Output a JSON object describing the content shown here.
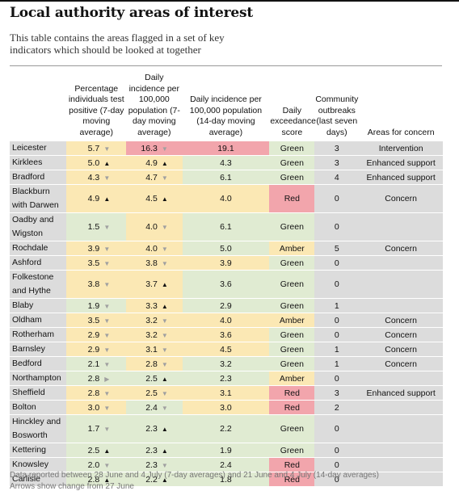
{
  "title": "Local authority areas of interest",
  "intro": "This table contains the areas flagged in a set of key indicators which should be looked at together",
  "headers": {
    "pct": "Percentage individuals test positive (7-day moving average)",
    "inc7": "Daily incidence per 100,000 population (7-day moving average)",
    "inc14": "Daily incidence per 100,000 population (14-day moving average)",
    "exc": "Daily exceedance score",
    "out": "Community outbreaks (last seven days)",
    "area": "Areas for concern"
  },
  "arrow_glyphs": {
    "up": "▲",
    "down": "▼",
    "right": "▶"
  },
  "colors": {
    "grey": "#dcdcdc",
    "yellow": "#fbe8b4",
    "red": "#f2a5ac",
    "green": "#e0ebd2"
  },
  "rows": [
    {
      "name": "Leicester",
      "pct": "5.7",
      "pct_arrow": "down",
      "pct_bg": "y",
      "inc7": "16.3",
      "inc7_arrow": "down",
      "inc7_bg": "r",
      "inc14": "19.1",
      "inc14_bg": "r",
      "exc": "Green",
      "exc_bg": "g",
      "out": "3",
      "area": "Intervention"
    },
    {
      "name": "Kirklees",
      "pct": "5.0",
      "pct_arrow": "up",
      "pct_bg": "y",
      "inc7": "4.9",
      "inc7_arrow": "up",
      "inc7_bg": "y",
      "inc14": "4.3",
      "inc14_bg": "g",
      "exc": "Green",
      "exc_bg": "g",
      "out": "3",
      "area": "Enhanced support"
    },
    {
      "name": "Bradford",
      "pct": "4.3",
      "pct_arrow": "down",
      "pct_bg": "y",
      "inc7": "4.7",
      "inc7_arrow": "down",
      "inc7_bg": "y",
      "inc14": "6.1",
      "inc14_bg": "g",
      "exc": "Green",
      "exc_bg": "g",
      "out": "4",
      "area": "Enhanced support"
    },
    {
      "name": "Blackburn with Darwen",
      "tall": true,
      "pct": "4.9",
      "pct_arrow": "up",
      "pct_bg": "y",
      "inc7": "4.5",
      "inc7_arrow": "up",
      "inc7_bg": "y",
      "inc14": "4.0",
      "inc14_bg": "y",
      "exc": "Red",
      "exc_bg": "r",
      "out": "0",
      "area": "Concern"
    },
    {
      "name": "Oadby and Wigston",
      "tall": true,
      "pct": "1.5",
      "pct_arrow": "down",
      "pct_bg": "g",
      "inc7": "4.0",
      "inc7_arrow": "down",
      "inc7_bg": "y",
      "inc14": "6.1",
      "inc14_bg": "g",
      "exc": "Green",
      "exc_bg": "g",
      "out": "0",
      "area": ""
    },
    {
      "name": "Rochdale",
      "pct": "3.9",
      "pct_arrow": "down",
      "pct_bg": "y",
      "inc7": "4.0",
      "inc7_arrow": "down",
      "inc7_bg": "y",
      "inc14": "5.0",
      "inc14_bg": "g",
      "exc": "Amber",
      "exc_bg": "y",
      "out": "5",
      "area": "Concern"
    },
    {
      "name": "Ashford",
      "pct": "3.5",
      "pct_arrow": "down",
      "pct_bg": "y",
      "inc7": "3.8",
      "inc7_arrow": "down",
      "inc7_bg": "y",
      "inc14": "3.9",
      "inc14_bg": "y",
      "exc": "Green",
      "exc_bg": "g",
      "out": "0",
      "area": ""
    },
    {
      "name": "Folkestone and Hythe",
      "tall": true,
      "pct": "3.8",
      "pct_arrow": "down",
      "pct_bg": "y",
      "inc7": "3.7",
      "inc7_arrow": "up",
      "inc7_bg": "y",
      "inc14": "3.6",
      "inc14_bg": "g",
      "exc": "Green",
      "exc_bg": "g",
      "out": "0",
      "area": ""
    },
    {
      "name": "Blaby",
      "pct": "1.9",
      "pct_arrow": "down",
      "pct_bg": "g",
      "inc7": "3.3",
      "inc7_arrow": "up",
      "inc7_bg": "y",
      "inc14": "2.9",
      "inc14_bg": "g",
      "exc": "Green",
      "exc_bg": "g",
      "out": "1",
      "area": ""
    },
    {
      "name": "Oldham",
      "pct": "3.5",
      "pct_arrow": "down",
      "pct_bg": "y",
      "inc7": "3.2",
      "inc7_arrow": "down",
      "inc7_bg": "y",
      "inc14": "4.0",
      "inc14_bg": "y",
      "exc": "Amber",
      "exc_bg": "y",
      "out": "0",
      "area": "Concern"
    },
    {
      "name": "Rotherham",
      "pct": "2.9",
      "pct_arrow": "down",
      "pct_bg": "y",
      "inc7": "3.2",
      "inc7_arrow": "down",
      "inc7_bg": "y",
      "inc14": "3.6",
      "inc14_bg": "y",
      "exc": "Green",
      "exc_bg": "g",
      "out": "0",
      "area": "Concern"
    },
    {
      "name": "Barnsley",
      "pct": "2.9",
      "pct_arrow": "down",
      "pct_bg": "y",
      "inc7": "3.1",
      "inc7_arrow": "down",
      "inc7_bg": "y",
      "inc14": "4.5",
      "inc14_bg": "y",
      "exc": "Green",
      "exc_bg": "g",
      "out": "1",
      "area": "Concern"
    },
    {
      "name": "Bedford",
      "pct": "2.1",
      "pct_arrow": "down",
      "pct_bg": "g",
      "inc7": "2.8",
      "inc7_arrow": "down",
      "inc7_bg": "y",
      "inc14": "3.2",
      "inc14_bg": "g",
      "exc": "Green",
      "exc_bg": "g",
      "out": "1",
      "area": "Concern"
    },
    {
      "name": "Northampton",
      "pct": "2.8",
      "pct_arrow": "right",
      "pct_bg": "g",
      "inc7": "2.5",
      "inc7_arrow": "up",
      "inc7_bg": "g",
      "inc14": "2.3",
      "inc14_bg": "g",
      "exc": "Amber",
      "exc_bg": "y",
      "out": "0",
      "area": ""
    },
    {
      "name": "Sheffield",
      "pct": "2.8",
      "pct_arrow": "down",
      "pct_bg": "y",
      "inc7": "2.5",
      "inc7_arrow": "down",
      "inc7_bg": "y",
      "inc14": "3.1",
      "inc14_bg": "y",
      "exc": "Red",
      "exc_bg": "r",
      "out": "3",
      "area": "Enhanced support"
    },
    {
      "name": "Bolton",
      "pct": "3.0",
      "pct_arrow": "down",
      "pct_bg": "y",
      "inc7": "2.4",
      "inc7_arrow": "down",
      "inc7_bg": "g",
      "inc14": "3.0",
      "inc14_bg": "y",
      "exc": "Red",
      "exc_bg": "r",
      "out": "2",
      "area": ""
    },
    {
      "name": "Hinckley and Bosworth",
      "tall": true,
      "pct": "1.7",
      "pct_arrow": "down",
      "pct_bg": "g",
      "inc7": "2.3",
      "inc7_arrow": "up",
      "inc7_bg": "g",
      "inc14": "2.2",
      "inc14_bg": "g",
      "exc": "Green",
      "exc_bg": "g",
      "out": "0",
      "area": ""
    },
    {
      "name": "Kettering",
      "pct": "2.5",
      "pct_arrow": "up",
      "pct_bg": "g",
      "inc7": "2.3",
      "inc7_arrow": "up",
      "inc7_bg": "g",
      "inc14": "1.9",
      "inc14_bg": "g",
      "exc": "Green",
      "exc_bg": "g",
      "out": "0",
      "area": ""
    },
    {
      "name": "Knowsley",
      "pct": "2.0",
      "pct_arrow": "down",
      "pct_bg": "g",
      "inc7": "2.3",
      "inc7_arrow": "down",
      "inc7_bg": "g",
      "inc14": "2.4",
      "inc14_bg": "g",
      "exc": "Red",
      "exc_bg": "r",
      "out": "0",
      "area": ""
    },
    {
      "name": "Carlisle",
      "pct": "2.8",
      "pct_arrow": "up",
      "pct_bg": "g",
      "inc7": "2.2",
      "inc7_arrow": "up",
      "inc7_bg": "g",
      "inc14": "1.8",
      "inc14_bg": "g",
      "exc": "Red",
      "exc_bg": "r",
      "out": "0",
      "area": ""
    }
  ],
  "footnote": "Data reported between 28 June and 4 July (7-day averages) and 21 June and 4 July (14-day averages)",
  "footnote2": "Arrows show change from 27 June"
}
